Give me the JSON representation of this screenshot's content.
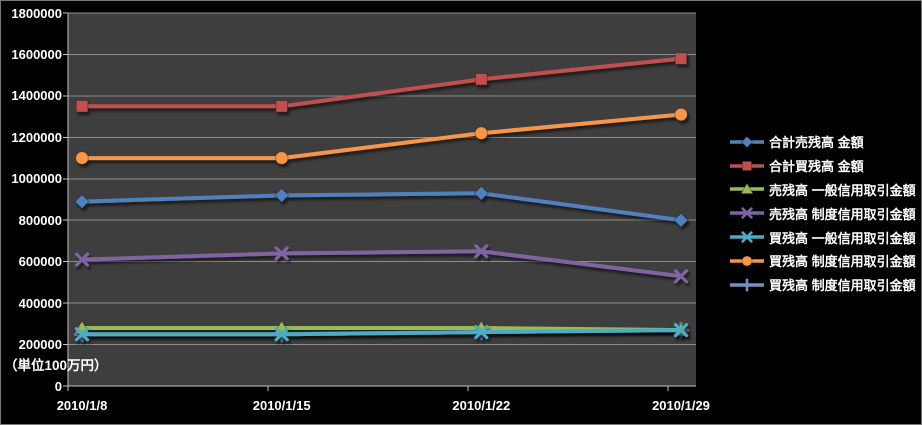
{
  "chart_data": {
    "type": "line",
    "title": "",
    "x_labels": [
      "2010/1/8",
      "2010/1/15",
      "2010/1/22",
      "2010/1/29"
    ],
    "y_ticks": [
      1800000,
      1600000,
      1400000,
      1200000,
      1000000,
      800000,
      600000,
      400000,
      200000,
      0
    ],
    "ylim": [
      0,
      1800000
    ],
    "y_tick_interval": 200000,
    "unit_label": "（単位100万円）",
    "grid": true,
    "legend_position": "right",
    "series": [
      {
        "name": "合計売残高 金額",
        "color": "#4F81BD",
        "marker": "diamond",
        "values": [
          890000,
          920000,
          930000,
          800000
        ]
      },
      {
        "name": "合計買残高 金額",
        "color": "#C0504D",
        "marker": "square",
        "values": [
          1350000,
          1350000,
          1480000,
          1580000
        ]
      },
      {
        "name": "売残高 一般信用取引金額",
        "color": "#9BBB59",
        "marker": "triangle",
        "values": [
          280000,
          280000,
          280000,
          270000
        ]
      },
      {
        "name": "売残高 制度信用取引金額",
        "color": "#8064A2",
        "marker": "x",
        "values": [
          610000,
          640000,
          650000,
          530000
        ]
      },
      {
        "name": "買残高 一般信用取引金額",
        "color": "#4BACC6",
        "marker": "x",
        "values": [
          250000,
          250000,
          260000,
          270000
        ]
      },
      {
        "name": "買残高 制度信用取引金額",
        "color": "#F79646",
        "marker": "circle",
        "values": [
          1100000,
          1100000,
          1220000,
          1310000
        ]
      },
      {
        "name": "買残高 制度信用取引金額",
        "color": "#7590C5",
        "marker": "plus",
        "values": [
          250000,
          250000,
          260000,
          270000
        ]
      }
    ],
    "draw_order": [
      6,
      2,
      4,
      3,
      0,
      5,
      1
    ],
    "colors": {
      "chart_bg": "#000000",
      "plot_bg": "#3E3E3E",
      "gridline": "#8E8E8E",
      "axis": "#C4C4C4",
      "text": "#FFFFFF",
      "border": "#7A7A7A"
    }
  }
}
